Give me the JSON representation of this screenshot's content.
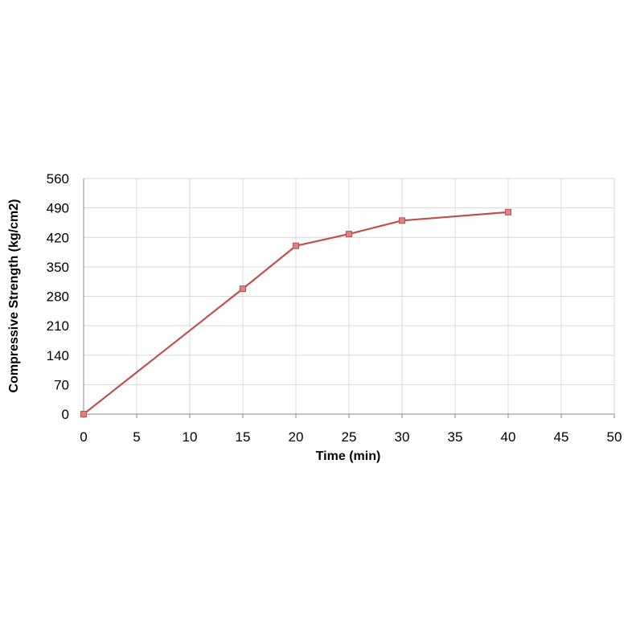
{
  "chart_data": {
    "type": "line",
    "title": "",
    "xlabel": "Time (min)",
    "ylabel": "Compressive Strength  (kg/cm2)",
    "xlim": [
      0,
      50
    ],
    "ylim": [
      0,
      560
    ],
    "x_ticks": [
      0,
      5,
      10,
      15,
      20,
      25,
      30,
      35,
      40,
      45,
      50
    ],
    "y_ticks": [
      0,
      70,
      140,
      210,
      280,
      350,
      420,
      490,
      560
    ],
    "grid": true,
    "legend": "none",
    "series": [
      {
        "color": "#c0504d",
        "marker": "square",
        "x": [
          0,
          15,
          20,
          25,
          30,
          40
        ],
        "y": [
          0,
          298,
          400,
          428,
          460,
          480
        ]
      }
    ]
  }
}
